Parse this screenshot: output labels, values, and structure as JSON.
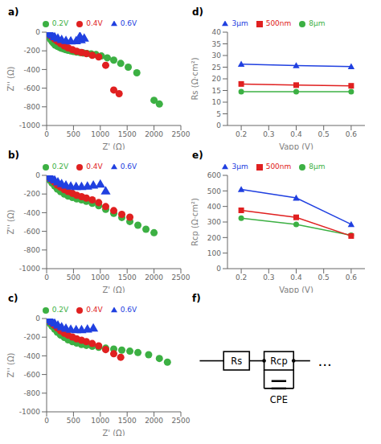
{
  "chart_data": [
    {
      "type": "scatter",
      "title": "a)",
      "x_label": "Z' (Ω)",
      "y_label": "Z'' (Ω)",
      "xlim": [
        0,
        2500
      ],
      "ylim": [
        -1000,
        0
      ],
      "xticks": [
        0,
        500,
        1000,
        1500,
        2000,
        2500
      ],
      "yticks": [
        -1000,
        -800,
        -600,
        -400,
        -200,
        0
      ],
      "grid": false,
      "legend": "top",
      "series": [
        {
          "name": "0.2V",
          "color": "#3cb043",
          "marker": "circle",
          "x": [
            10,
            30,
            50,
            70,
            100,
            130,
            160,
            200,
            240,
            280,
            320,
            360,
            400,
            450,
            500,
            560,
            620,
            680,
            750,
            830,
            920,
            1020,
            1130,
            1250,
            1380,
            1520,
            1680,
            2000,
            2100
          ],
          "values": [
            -10,
            -28,
            -52,
            -75,
            -100,
            -120,
            -138,
            -152,
            -163,
            -172,
            -180,
            -188,
            -194,
            -200,
            -207,
            -213,
            -218,
            -223,
            -228,
            -233,
            -240,
            -255,
            -275,
            -300,
            -335,
            -375,
            -435,
            -730,
            -770
          ]
        },
        {
          "name": "0.4V",
          "color": "#e02020",
          "marker": "circle",
          "x": [
            10,
            30,
            60,
            100,
            150,
            200,
            260,
            330,
            400,
            480,
            560,
            650,
            740,
            850,
            970,
            1100,
            1250,
            1350
          ],
          "values": [
            -5,
            -15,
            -32,
            -52,
            -75,
            -98,
            -122,
            -148,
            -168,
            -188,
            -205,
            -218,
            -230,
            -248,
            -265,
            -355,
            -620,
            -660
          ]
        },
        {
          "name": "0.6V",
          "color": "#2040e0",
          "marker": "triangle",
          "x": [
            10,
            30,
            60,
            100,
            150,
            210,
            280,
            360,
            450,
            550,
            640,
            700,
            620
          ],
          "values": [
            -3,
            -10,
            -22,
            -37,
            -57,
            -72,
            -87,
            -97,
            -102,
            -100,
            -88,
            -72,
            -50
          ]
        }
      ]
    },
    {
      "type": "scatter",
      "title": "b)",
      "x_label": "Z' (Ω)",
      "y_label": "Z'' (Ω)",
      "xlim": [
        0,
        2500
      ],
      "ylim": [
        -1000,
        0
      ],
      "xticks": [
        0,
        500,
        1000,
        1500,
        2000,
        2500
      ],
      "yticks": [
        -1000,
        -800,
        -600,
        -400,
        -200,
        0
      ],
      "grid": false,
      "legend": "top",
      "series": [
        {
          "name": "0.2V",
          "color": "#3cb043",
          "marker": "circle",
          "x": [
            10,
            30,
            60,
            100,
            150,
            200,
            260,
            330,
            400,
            480,
            560,
            650,
            740,
            850,
            970,
            1100,
            1250,
            1400,
            1550,
            1700,
            1850,
            2000
          ],
          "values": [
            -10,
            -27,
            -52,
            -82,
            -115,
            -148,
            -175,
            -200,
            -222,
            -238,
            -252,
            -263,
            -278,
            -300,
            -325,
            -365,
            -408,
            -452,
            -495,
            -535,
            -578,
            -615
          ]
        },
        {
          "name": "0.4V",
          "color": "#e02020",
          "marker": "circle",
          "x": [
            10,
            30,
            60,
            100,
            150,
            200,
            260,
            330,
            400,
            480,
            560,
            650,
            740,
            850,
            970,
            1100,
            1250,
            1400,
            1550
          ],
          "values": [
            -5,
            -15,
            -32,
            -52,
            -77,
            -103,
            -128,
            -153,
            -173,
            -193,
            -213,
            -228,
            -243,
            -263,
            -292,
            -335,
            -378,
            -418,
            -448
          ]
        },
        {
          "name": "0.6V",
          "color": "#2040e0",
          "marker": "triangle",
          "x": [
            10,
            30,
            60,
            100,
            150,
            210,
            280,
            360,
            450,
            550,
            650,
            760,
            870,
            1000,
            1100
          ],
          "values": [
            -3,
            -10,
            -22,
            -38,
            -57,
            -77,
            -97,
            -112,
            -123,
            -128,
            -128,
            -122,
            -113,
            -102,
            -175
          ]
        }
      ]
    },
    {
      "type": "scatter",
      "title": "c)",
      "x_label": "Z' (Ω)",
      "y_label": "Z'' (Ω)",
      "xlim": [
        0,
        2500
      ],
      "ylim": [
        -1000,
        0
      ],
      "xticks": [
        0,
        500,
        1000,
        1500,
        2000,
        2500
      ],
      "yticks": [
        -1000,
        -800,
        -600,
        -400,
        -200,
        0
      ],
      "grid": false,
      "legend": "top",
      "series": [
        {
          "name": "0.2V",
          "color": "#3cb043",
          "marker": "circle",
          "x": [
            10,
            30,
            60,
            100,
            150,
            200,
            260,
            330,
            400,
            480,
            560,
            650,
            740,
            850,
            970,
            1100,
            1250,
            1400,
            1550,
            1700,
            1900,
            2100,
            2250
          ],
          "values": [
            -10,
            -27,
            -52,
            -82,
            -115,
            -148,
            -178,
            -203,
            -228,
            -248,
            -263,
            -278,
            -288,
            -298,
            -308,
            -318,
            -328,
            -338,
            -350,
            -365,
            -388,
            -428,
            -468
          ]
        },
        {
          "name": "0.4V",
          "color": "#e02020",
          "marker": "circle",
          "x": [
            10,
            30,
            60,
            100,
            150,
            200,
            260,
            330,
            400,
            480,
            560,
            650,
            740,
            850,
            970,
            1100,
            1250,
            1380
          ],
          "values": [
            -5,
            -15,
            -32,
            -52,
            -77,
            -102,
            -132,
            -158,
            -178,
            -198,
            -218,
            -233,
            -248,
            -268,
            -293,
            -333,
            -378,
            -415
          ]
        },
        {
          "name": "0.6V",
          "color": "#2040e0",
          "marker": "triangle",
          "x": [
            10,
            30,
            60,
            100,
            150,
            210,
            280,
            360,
            450,
            550,
            650,
            760,
            870
          ],
          "values": [
            -3,
            -10,
            -22,
            -38,
            -57,
            -77,
            -97,
            -112,
            -122,
            -128,
            -127,
            -120,
            -110
          ]
        }
      ]
    },
    {
      "type": "line",
      "title": "d)",
      "x_label": "Vapp (V)",
      "y_label": "Rs (Ω·cm²)",
      "x": [
        0.2,
        0.4,
        0.6
      ],
      "xlim": [
        0.15,
        0.65
      ],
      "xticks": [
        0.2,
        0.3,
        0.4,
        0.5,
        0.6
      ],
      "ylim": [
        0,
        40
      ],
      "yticks": [
        0,
        5,
        10,
        15,
        20,
        25,
        30,
        35,
        40
      ],
      "grid": false,
      "legend": "top",
      "series": [
        {
          "name": "8μm",
          "color": "#3cb043",
          "marker": "circle",
          "values": [
            14.5,
            14.5,
            14.5
          ]
        },
        {
          "name": "500nm",
          "color": "#e02020",
          "marker": "square",
          "values": [
            17.8,
            17.3,
            17.0
          ]
        },
        {
          "name": "3μm",
          "color": "#2040e0",
          "marker": "triangle",
          "values": [
            26.3,
            25.7,
            25.3
          ]
        }
      ]
    },
    {
      "type": "line",
      "title": "e)",
      "x_label": "Vapp (V)",
      "y_label": "Rcp (Ω·cm²)",
      "x": [
        0.2,
        0.4,
        0.6
      ],
      "xlim": [
        0.15,
        0.65
      ],
      "xticks": [
        0.2,
        0.3,
        0.4,
        0.5,
        0.6
      ],
      "ylim": [
        0,
        600
      ],
      "yticks": [
        0,
        100,
        200,
        300,
        400,
        500,
        600
      ],
      "grid": false,
      "legend": "top",
      "series": [
        {
          "name": "8μm",
          "color": "#3cb043",
          "marker": "circle",
          "values": [
            325,
            285,
            215
          ]
        },
        {
          "name": "500nm",
          "color": "#e02020",
          "marker": "square",
          "values": [
            375,
            330,
            210
          ]
        },
        {
          "name": "3μm",
          "color": "#2040e0",
          "marker": "triangle",
          "values": [
            510,
            455,
            285
          ]
        }
      ]
    },
    {
      "type": "circuit",
      "title": "f)",
      "annotations": [
        "Rs",
        "Rcp",
        "CPE",
        "..."
      ]
    }
  ]
}
